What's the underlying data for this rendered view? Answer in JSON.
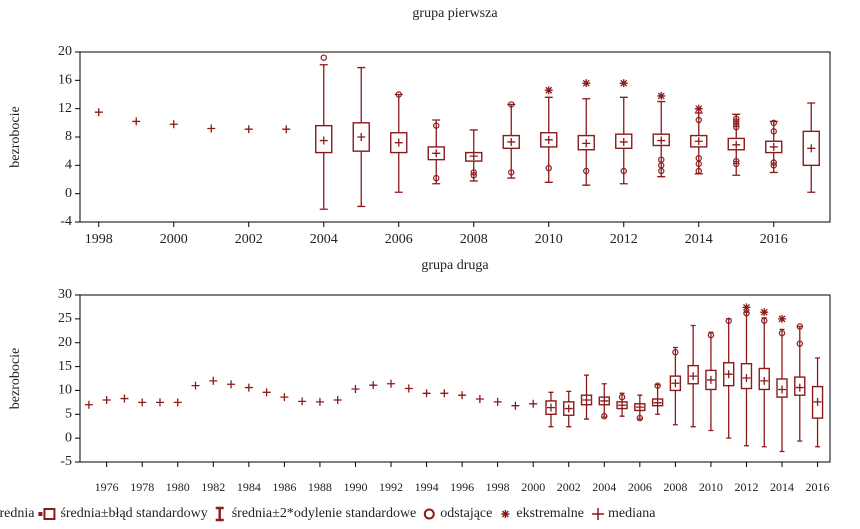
{
  "chart_data": [
    {
      "type": "box",
      "title": "grupa pierwsza",
      "ylabel": "bezrobocie",
      "color": "#8b1a1a",
      "x": [
        1998,
        1999,
        2000,
        2001,
        2002,
        2003,
        2004,
        2005,
        2006,
        2007,
        2008,
        2009,
        2010,
        2011,
        2012,
        2013,
        2014,
        2015,
        2016,
        2017
      ],
      "xlim": [
        1997.5,
        2017.5
      ],
      "xticks": [
        1998,
        2000,
        2002,
        2004,
        2006,
        2008,
        2010,
        2012,
        2014,
        2016
      ],
      "ylim": [
        -4,
        20
      ],
      "yticks": [
        -4,
        0,
        4,
        8,
        12,
        16,
        20
      ],
      "median": [
        11.5,
        10.2,
        9.8,
        9.2,
        9.1,
        9.1,
        7.5,
        8.0,
        7.2,
        5.7,
        5.3,
        7.3,
        7.6,
        7.1,
        7.3,
        7.5,
        7.4,
        6.9,
        6.6,
        6.4
      ],
      "box_low": [
        null,
        null,
        null,
        null,
        null,
        null,
        5.8,
        6.0,
        5.8,
        4.8,
        4.6,
        6.4,
        6.6,
        6.2,
        6.4,
        6.8,
        6.6,
        6.2,
        5.8,
        4.0
      ],
      "box_high": [
        null,
        null,
        null,
        null,
        null,
        null,
        9.6,
        10.0,
        8.6,
        6.6,
        5.8,
        8.2,
        8.6,
        8.2,
        8.4,
        8.4,
        8.2,
        7.8,
        7.4,
        8.8
      ],
      "whisker_low": [
        null,
        null,
        null,
        null,
        null,
        null,
        -2.2,
        -1.8,
        0.2,
        1.4,
        1.8,
        2.2,
        1.6,
        1.2,
        1.4,
        2.4,
        2.8,
        2.6,
        3.0,
        0.2
      ],
      "whisker_high": [
        null,
        null,
        null,
        null,
        null,
        null,
        18.2,
        17.8,
        14.0,
        10.4,
        9.0,
        12.6,
        13.6,
        13.4,
        13.6,
        13.0,
        11.4,
        11.2,
        10.2,
        12.8
      ],
      "outliers": [
        [],
        [],
        [],
        [],
        [],
        [],
        [
          19.2
        ],
        [],
        [
          14.0
        ],
        [
          2.2,
          9.6
        ],
        [
          2.6,
          3.0
        ],
        [
          3.0,
          12.6
        ],
        [
          3.6
        ],
        [
          3.2
        ],
        [
          3.2
        ],
        [
          3.2,
          4.0,
          4.8
        ],
        [
          3.2,
          4.2,
          5.0,
          10.4
        ],
        [
          4.2,
          4.6,
          9.4,
          9.8,
          10.2,
          10.6
        ],
        [
          4.0,
          4.4,
          8.8,
          10.0
        ],
        []
      ],
      "extremes": [
        [],
        [],
        [],
        [],
        [],
        [],
        [],
        [],
        [],
        [],
        [],
        [],
        [
          14.6
        ],
        [
          15.6
        ],
        [
          15.6
        ],
        [
          13.8
        ],
        [
          12.0
        ],
        [],
        [],
        []
      ]
    },
    {
      "type": "box",
      "title": "grupa druga",
      "ylabel": "bezrobocie",
      "color": "#8b1a1a",
      "x": [
        1975,
        1976,
        1977,
        1978,
        1979,
        1980,
        1981,
        1982,
        1983,
        1984,
        1985,
        1986,
        1987,
        1988,
        1989,
        1990,
        1991,
        1992,
        1993,
        1994,
        1995,
        1996,
        1997,
        1998,
        1999,
        2000,
        2001,
        2002,
        2003,
        2004,
        2005,
        2006,
        2007,
        2008,
        2009,
        2010,
        2011,
        2012,
        2013,
        2014,
        2015,
        2016
      ],
      "xlim": [
        1974.5,
        2016.7
      ],
      "xticks": [
        1976,
        1978,
        1980,
        1982,
        1984,
        1986,
        1988,
        1990,
        1992,
        1994,
        1996,
        1998,
        2000,
        2002,
        2004,
        2006,
        2008,
        2010,
        2012,
        2014,
        2016
      ],
      "ylim": [
        -5,
        30
      ],
      "yticks": [
        -5,
        0,
        5,
        10,
        15,
        20,
        25,
        30
      ],
      "median": [
        7.0,
        8.0,
        8.3,
        7.5,
        7.5,
        7.5,
        11.0,
        12.0,
        11.3,
        10.6,
        9.6,
        8.6,
        7.7,
        7.6,
        8.0,
        10.3,
        11.1,
        11.4,
        10.4,
        9.4,
        9.4,
        9.0,
        8.2,
        7.6,
        6.8,
        7.2,
        6.4,
        6.2,
        8.0,
        7.8,
        6.9,
        6.5,
        7.4,
        11.5,
        13.0,
        12.2,
        13.4,
        12.6,
        12.0,
        10.2,
        10.6,
        7.6
      ],
      "box_low": [
        null,
        null,
        null,
        null,
        null,
        null,
        null,
        null,
        null,
        null,
        null,
        null,
        null,
        null,
        null,
        null,
        null,
        null,
        null,
        null,
        null,
        null,
        null,
        null,
        null,
        null,
        5.0,
        4.8,
        7.0,
        7.0,
        6.2,
        5.8,
        6.8,
        10.0,
        11.4,
        10.2,
        11.0,
        10.4,
        10.2,
        8.6,
        9.0,
        4.2
      ],
      "box_high": [
        null,
        null,
        null,
        null,
        null,
        null,
        null,
        null,
        null,
        null,
        null,
        null,
        null,
        null,
        null,
        null,
        null,
        null,
        null,
        null,
        null,
        null,
        null,
        null,
        null,
        null,
        7.8,
        7.6,
        9.0,
        8.6,
        7.6,
        7.2,
        8.2,
        13.0,
        15.2,
        14.2,
        15.8,
        15.6,
        14.6,
        12.4,
        12.8,
        10.8
      ],
      "whisker_low": [
        null,
        null,
        null,
        null,
        null,
        null,
        null,
        null,
        null,
        null,
        null,
        null,
        null,
        null,
        null,
        null,
        null,
        null,
        null,
        null,
        null,
        null,
        null,
        null,
        null,
        null,
        2.4,
        2.4,
        4.0,
        4.4,
        4.6,
        4.0,
        5.0,
        2.8,
        2.4,
        1.6,
        0.0,
        -1.6,
        -1.8,
        -2.8,
        -0.6,
        -1.8
      ],
      "whisker_high": [
        null,
        null,
        null,
        null,
        null,
        null,
        null,
        null,
        null,
        null,
        null,
        null,
        null,
        null,
        null,
        null,
        null,
        null,
        null,
        null,
        null,
        null,
        null,
        null,
        null,
        null,
        9.6,
        9.8,
        13.2,
        11.4,
        9.4,
        9.0,
        11.2,
        19.0,
        23.6,
        22.2,
        25.0,
        26.4,
        25.2,
        22.8,
        23.4,
        16.8
      ],
      "outliers": [
        [],
        [],
        [],
        [],
        [],
        [],
        [],
        [],
        [],
        [],
        [],
        [],
        [],
        [],
        [],
        [],
        [],
        [],
        [],
        [],
        [],
        [],
        [],
        [],
        [],
        [],
        [],
        [],
        [],
        [
          4.6
        ],
        [
          8.6
        ],
        [
          4.2
        ],
        [
          11.0
        ],
        [
          18.0
        ],
        [],
        [
          21.6
        ],
        [
          24.6
        ],
        [
          26.2
        ],
        [
          24.6
        ],
        [
          22.0
        ],
        [
          19.8,
          23.4
        ],
        []
      ],
      "extremes": [
        [],
        [],
        [],
        [],
        [],
        [],
        [],
        [],
        [],
        [],
        [],
        [],
        [],
        [],
        [],
        [],
        [],
        [],
        [],
        [],
        [],
        [],
        [],
        [],
        [],
        [],
        [],
        [],
        [],
        [],
        [],
        [],
        [],
        [],
        [],
        [],
        [],
        [
          27.4
        ],
        [
          26.4
        ],
        [
          25.0
        ],
        [],
        []
      ]
    }
  ],
  "legend": [
    "średnia",
    "średnia±błąd standardowy",
    "średnia±2*odylenie standardowe",
    "odstające",
    "ekstremalne",
    "mediana"
  ]
}
